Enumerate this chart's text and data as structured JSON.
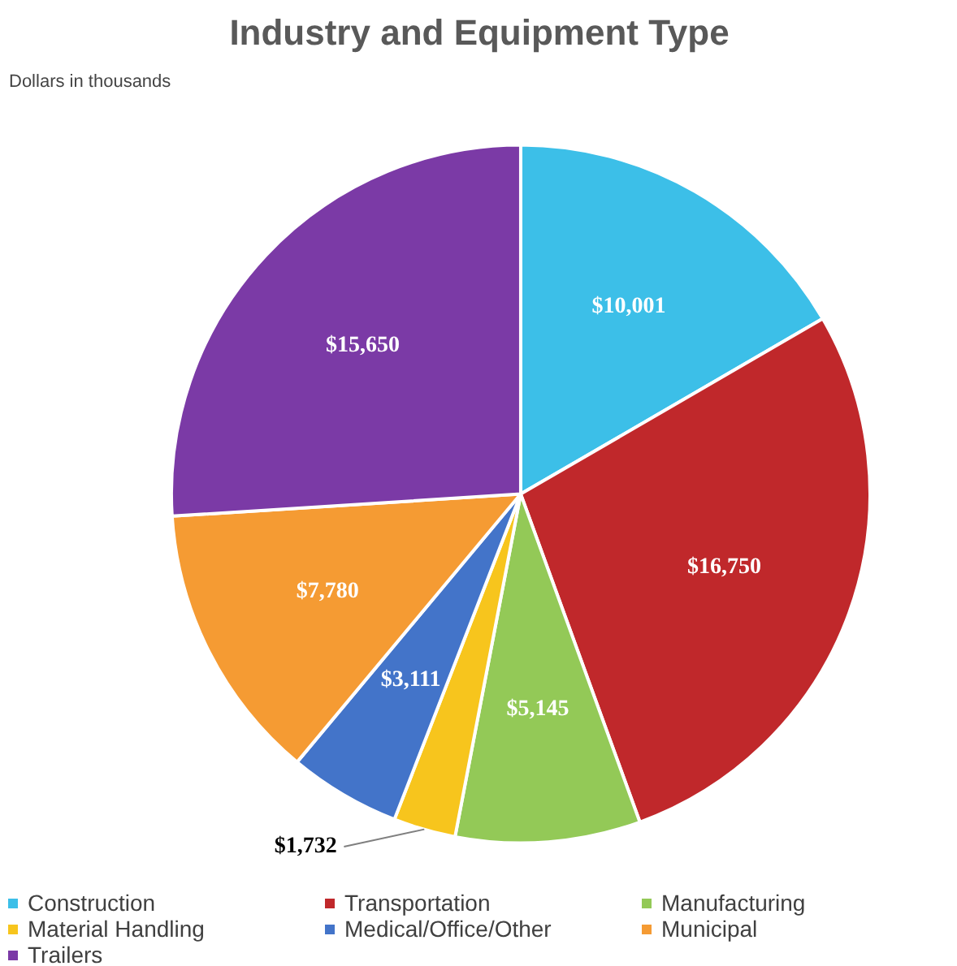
{
  "chart_data": {
    "type": "pie",
    "title": "Industry and Equipment Type",
    "subtitle": "Dollars in thousands",
    "categories": [
      "Construction",
      "Transportation",
      "Manufacturing",
      "Material Handling",
      "Medical/Office/Other",
      "Municipal",
      "Trailers"
    ],
    "values": [
      10001,
      16750,
      5145,
      1732,
      3111,
      7780,
      15650
    ],
    "colors": [
      "#3cbfe8",
      "#c0282b",
      "#93c957",
      "#f7c51d",
      "#4374c9",
      "#f59b33",
      "#7b3aa6"
    ],
    "value_labels": [
      "$10,001",
      "$16,750",
      "$5,145",
      "$1,732",
      "$3,111",
      "$7,780",
      "$15,650"
    ],
    "legend": "bottom"
  }
}
